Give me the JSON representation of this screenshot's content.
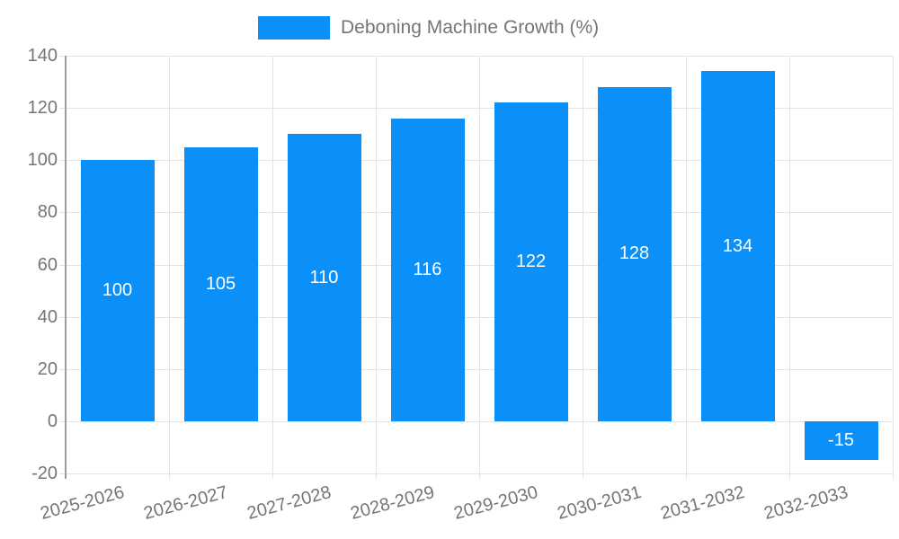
{
  "legend": {
    "label": "Deboning Machine Growth (%)"
  },
  "chart_data": {
    "type": "bar",
    "title": "Deboning Machine Growth (%)",
    "categories": [
      "2025-2026",
      "2026-2027",
      "2027-2028",
      "2028-2029",
      "2029-2030",
      "2030-2031",
      "2031-2032",
      "2032-2033"
    ],
    "values": [
      100,
      105,
      110,
      116,
      122,
      128,
      134,
      -15
    ],
    "series": [
      {
        "name": "Deboning Machine Growth (%)",
        "values": [
          100,
          105,
          110,
          116,
          122,
          128,
          134,
          -15
        ]
      }
    ],
    "xlabel": "",
    "ylabel": "",
    "ylim": [
      -20,
      140
    ],
    "yticks": [
      140,
      120,
      100,
      80,
      60,
      40,
      20,
      0,
      -20
    ],
    "grid": true,
    "legend_position": "top-center",
    "data_labels": "inside-center",
    "x_label_rotation_deg": -15,
    "colors": {
      "bar": "#0a90f8",
      "data_label": "#ffffff",
      "axis_text": "#757575",
      "grid": "#e3e3e3",
      "axis_line": "#9b9b9b",
      "background": "#ffffff"
    }
  }
}
